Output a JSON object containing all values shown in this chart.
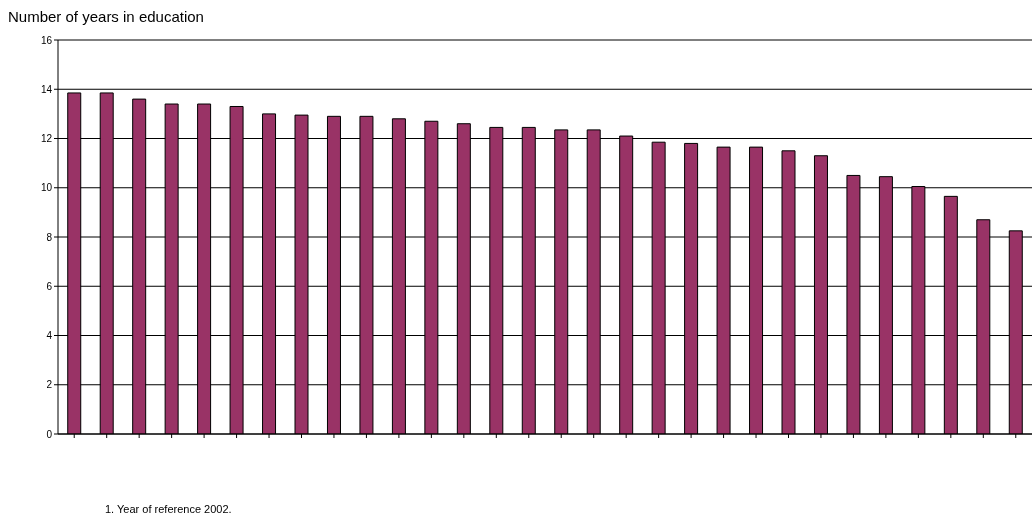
{
  "chart_data": {
    "type": "bar",
    "title": "Number of years in education",
    "categories": [
      null,
      null,
      null,
      null,
      null,
      null,
      null,
      null,
      null,
      null,
      null,
      null,
      null,
      null,
      null,
      null,
      null,
      null,
      null,
      null,
      null,
      null,
      null,
      null,
      null,
      null,
      null,
      null,
      null,
      null
    ],
    "values": [
      13.85,
      13.85,
      13.6,
      13.4,
      13.4,
      13.3,
      13.0,
      12.95,
      12.9,
      12.9,
      12.8,
      12.7,
      12.6,
      12.45,
      12.45,
      12.35,
      12.35,
      12.1,
      11.85,
      11.8,
      11.65,
      11.65,
      11.5,
      11.3,
      10.5,
      10.45,
      10.05,
      9.65,
      8.7,
      8.25
    ],
    "color": "#993366",
    "ylim": [
      0,
      16
    ],
    "yticks": [
      0,
      2,
      4,
      6,
      8,
      10,
      12,
      14,
      16
    ],
    "grid": "y",
    "annotations": [
      "1. Year of reference 2002."
    ]
  }
}
